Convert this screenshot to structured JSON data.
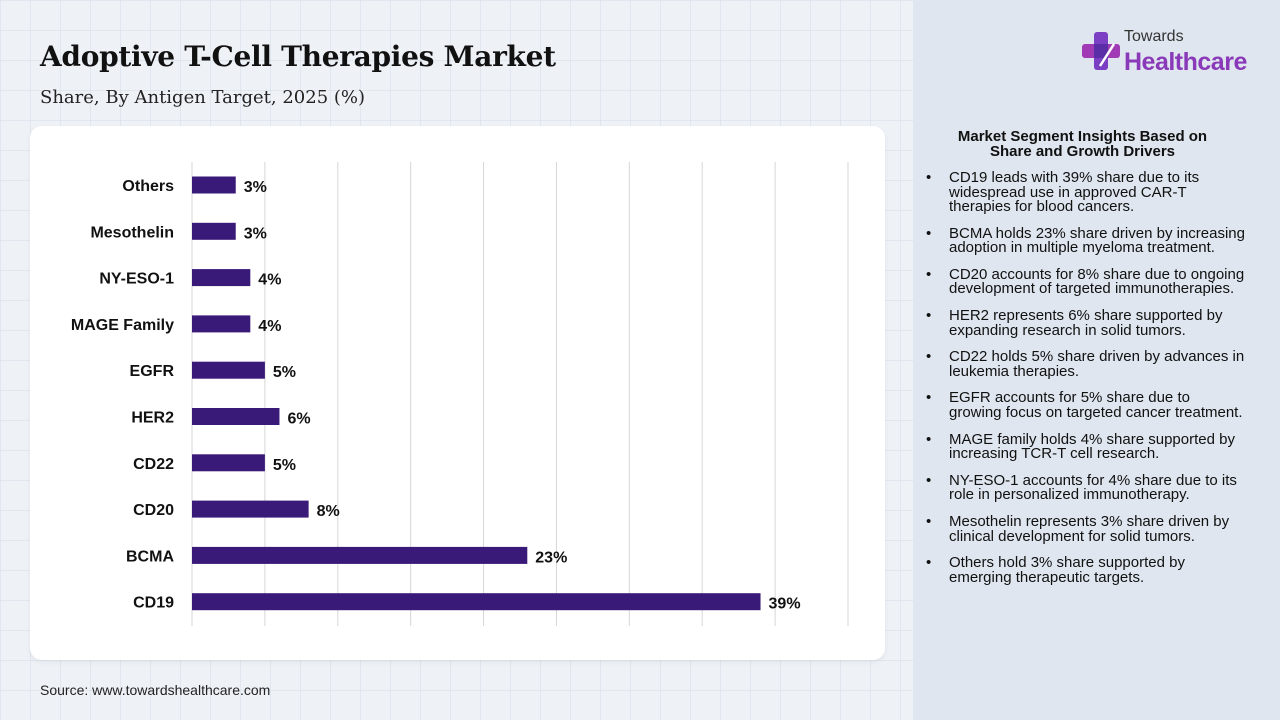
{
  "header": {
    "title": "Adoptive T-Cell Therapies Market",
    "subtitle": "Share, By Antigen Target, 2025 (%)"
  },
  "logo": {
    "line1": "Towards",
    "line2": "Healthcare",
    "brand_color": "#8a3ab9"
  },
  "source": "Source: www.towardshealthcare.com",
  "insights": {
    "title_line1": "Market Segment Insights Based on",
    "title_line2": "Share and Growth Drivers",
    "items": [
      "CD19 leads with 39% share due to its widespread use in approved CAR-T therapies for blood cancers.",
      "BCMA holds 23% share driven by increasing adoption in multiple myeloma treatment.",
      "CD20 accounts for 8% share due to ongoing development of targeted immunotherapies.",
      "HER2 represents 6% share supported by expanding research in solid tumors.",
      "CD22 holds 5% share driven by advances in leukemia therapies.",
      "EGFR accounts for 5% share due to growing focus on targeted cancer treatment.",
      "MAGE family holds 4% share supported by increasing TCR-T cell research.",
      "NY-ESO-1 accounts for 4% share due to its role in personalized immunotherapy.",
      "Mesothelin represents 3% share driven by clinical development for solid tumors.",
      "Others hold 3% share supported by emerging therapeutic targets."
    ]
  },
  "chart_data": {
    "type": "bar",
    "orientation": "horizontal",
    "title": "Adoptive T-Cell Therapies Market",
    "subtitle": "Share, By Antigen Target, 2025 (%)",
    "categories": [
      "Others",
      "Mesothelin",
      "NY-ESO-1",
      "MAGE Family",
      "EGFR",
      "HER2",
      "CD22",
      "CD20",
      "BCMA",
      "CD19"
    ],
    "values": [
      3,
      3,
      4,
      4,
      5,
      6,
      5,
      8,
      23,
      39
    ],
    "value_labels": [
      "3%",
      "3%",
      "4%",
      "4%",
      "5%",
      "6%",
      "5%",
      "8%",
      "23%",
      "39%"
    ],
    "xlim": [
      0,
      45
    ],
    "grid_step": 5,
    "grid": true,
    "bar_color": "#3a1a78"
  }
}
